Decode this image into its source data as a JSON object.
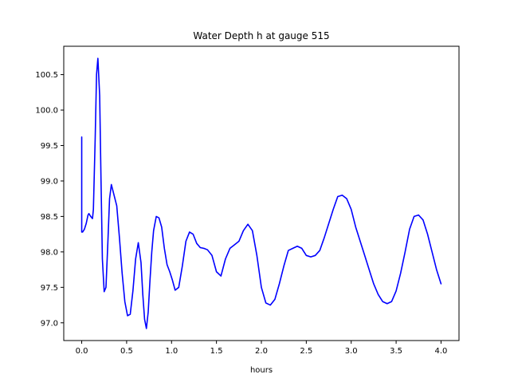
{
  "chart_data": {
    "type": "line",
    "title": "Water Depth h at gauge 515",
    "xlabel": "hours",
    "ylabel": "",
    "xlim": [
      -0.2,
      4.2
    ],
    "ylim": [
      96.75,
      100.9
    ],
    "grid": false,
    "x_ticks": [
      {
        "value": 0.0,
        "label": "0.0"
      },
      {
        "value": 0.5,
        "label": "0.5"
      },
      {
        "value": 1.0,
        "label": "1.0"
      },
      {
        "value": 1.5,
        "label": "1.5"
      },
      {
        "value": 2.0,
        "label": "2.0"
      },
      {
        "value": 2.5,
        "label": "2.5"
      },
      {
        "value": 3.0,
        "label": "3.0"
      },
      {
        "value": 3.5,
        "label": "3.5"
      },
      {
        "value": 4.0,
        "label": "4.0"
      }
    ],
    "y_ticks": [
      {
        "value": 97.0,
        "label": "97.0"
      },
      {
        "value": 97.5,
        "label": "97.5"
      },
      {
        "value": 98.0,
        "label": "98.0"
      },
      {
        "value": 98.5,
        "label": "98.5"
      },
      {
        "value": 99.0,
        "label": "99.0"
      },
      {
        "value": 99.5,
        "label": "99.5"
      },
      {
        "value": 100.0,
        "label": "100.0"
      },
      {
        "value": 100.5,
        "label": "100.5"
      }
    ],
    "series": [
      {
        "color": "#0000ff",
        "x": [
          0.0,
          0.0,
          0.01,
          0.03,
          0.05,
          0.07,
          0.08,
          0.1,
          0.12,
          0.13,
          0.15,
          0.165,
          0.18,
          0.2,
          0.215,
          0.23,
          0.25,
          0.27,
          0.29,
          0.31,
          0.33,
          0.35,
          0.37,
          0.39,
          0.42,
          0.45,
          0.48,
          0.51,
          0.54,
          0.57,
          0.6,
          0.63,
          0.66,
          0.68,
          0.7,
          0.72,
          0.74,
          0.76,
          0.78,
          0.8,
          0.83,
          0.86,
          0.89,
          0.92,
          0.95,
          0.98,
          1.01,
          1.04,
          1.08,
          1.12,
          1.16,
          1.2,
          1.24,
          1.28,
          1.32,
          1.36,
          1.4,
          1.45,
          1.5,
          1.55,
          1.6,
          1.65,
          1.7,
          1.75,
          1.8,
          1.85,
          1.9,
          1.95,
          2.0,
          2.05,
          2.1,
          2.15,
          2.2,
          2.25,
          2.3,
          2.35,
          2.4,
          2.45,
          2.5,
          2.55,
          2.6,
          2.65,
          2.7,
          2.75,
          2.8,
          2.85,
          2.9,
          2.95,
          3.0,
          3.05,
          3.1,
          3.15,
          3.2,
          3.25,
          3.3,
          3.35,
          3.4,
          3.45,
          3.5,
          3.55,
          3.6,
          3.65,
          3.7,
          3.75,
          3.8,
          3.85,
          3.9,
          3.95,
          4.0
        ],
        "y": [
          99.62,
          98.28,
          98.28,
          98.32,
          98.4,
          98.52,
          98.54,
          98.5,
          98.47,
          98.6,
          99.6,
          100.5,
          100.73,
          100.2,
          99.0,
          97.9,
          97.44,
          97.5,
          98.1,
          98.75,
          98.95,
          98.85,
          98.75,
          98.65,
          98.2,
          97.7,
          97.3,
          97.1,
          97.12,
          97.45,
          97.9,
          98.13,
          97.85,
          97.4,
          97.05,
          96.92,
          97.15,
          97.6,
          98.0,
          98.3,
          98.5,
          98.48,
          98.35,
          98.05,
          97.82,
          97.72,
          97.6,
          97.46,
          97.5,
          97.8,
          98.15,
          98.28,
          98.25,
          98.12,
          98.06,
          98.05,
          98.03,
          97.95,
          97.72,
          97.66,
          97.9,
          98.05,
          98.1,
          98.15,
          98.3,
          98.39,
          98.3,
          97.95,
          97.5,
          97.28,
          97.25,
          97.33,
          97.55,
          97.8,
          98.02,
          98.05,
          98.08,
          98.05,
          97.95,
          97.93,
          97.95,
          98.02,
          98.2,
          98.4,
          98.6,
          98.78,
          98.8,
          98.75,
          98.6,
          98.35,
          98.15,
          97.95,
          97.75,
          97.55,
          97.4,
          97.3,
          97.27,
          97.3,
          97.45,
          97.7,
          98.0,
          98.32,
          98.5,
          98.52,
          98.45,
          98.25,
          98.0,
          97.75,
          97.55
        ]
      }
    ]
  }
}
